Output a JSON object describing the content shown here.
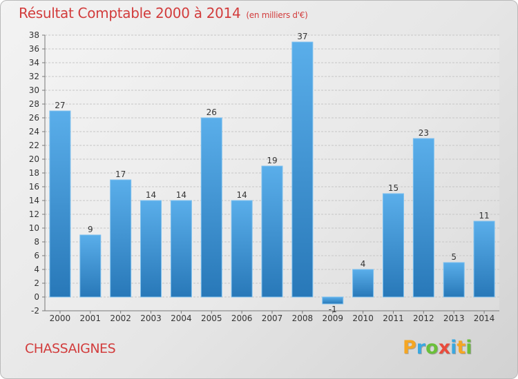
{
  "title": "Résultat Comptable 2000 à 2014",
  "subtitle": "(en milliers d'€)",
  "commune": "CHASSAIGNES",
  "logo": {
    "letters": [
      "P",
      "r",
      "o",
      "x",
      "i",
      "t",
      "i"
    ],
    "colors": [
      "#f5a623",
      "#3aa8e0",
      "#6abf3a",
      "#e94b3c",
      "#3aa8e0",
      "#f5a623",
      "#6abf3a"
    ]
  },
  "colors": {
    "bar_top": "#5aaeea",
    "bar_bottom": "#2878b8",
    "title": "#d23c3c"
  },
  "chart_data": {
    "type": "bar",
    "categories": [
      "2000",
      "2001",
      "2002",
      "2003",
      "2004",
      "2005",
      "2006",
      "2007",
      "2008",
      "2009",
      "2010",
      "2011",
      "2012",
      "2013",
      "2014"
    ],
    "values": [
      27,
      9,
      17,
      14,
      14,
      26,
      14,
      19,
      37,
      -1,
      4,
      15,
      23,
      5,
      11
    ],
    "data_labels": [
      "27",
      "9",
      "17",
      "14",
      "14",
      "26",
      "14",
      "19",
      "37",
      "-1",
      "4",
      "15",
      "23",
      "5",
      "11"
    ],
    "title": "Résultat Comptable 2000 à 2014",
    "xlabel": "",
    "ylabel": "",
    "ylim": [
      -2,
      38
    ],
    "yticks": [
      -2,
      0,
      2,
      4,
      6,
      8,
      10,
      12,
      14,
      16,
      18,
      20,
      22,
      24,
      26,
      28,
      30,
      32,
      34,
      36,
      38
    ],
    "grid": true
  }
}
